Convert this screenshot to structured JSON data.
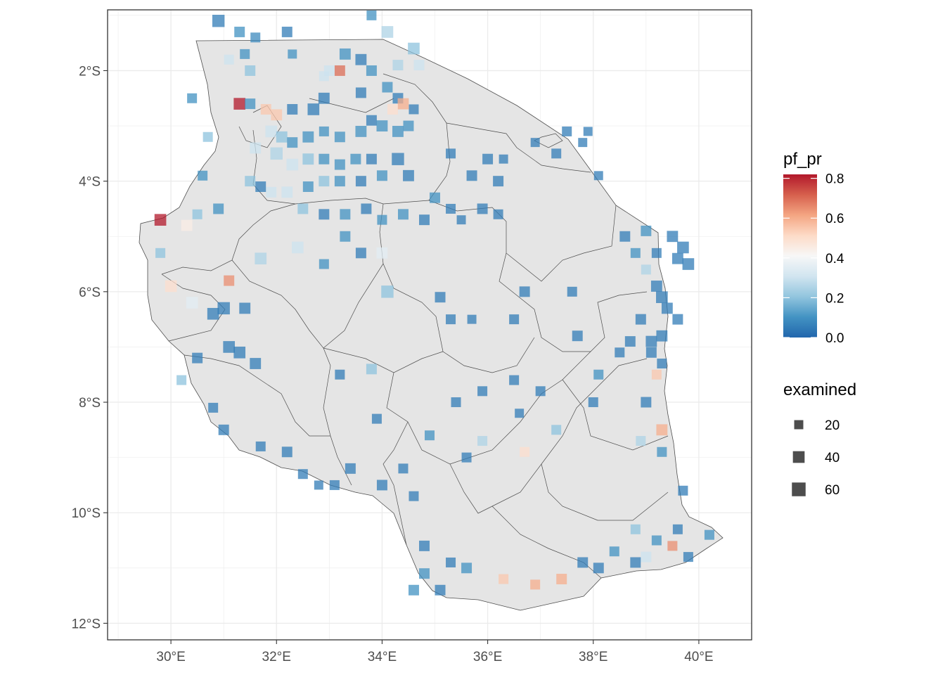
{
  "map": {
    "x_ticks": [
      "30°E",
      "32°E",
      "34°E",
      "36°E",
      "38°E",
      "40°E"
    ],
    "y_ticks": [
      "2°S",
      "4°S",
      "6°S",
      "8°S",
      "10°S",
      "12°S"
    ],
    "x_tick_values": [
      30,
      32,
      34,
      36,
      38,
      40
    ],
    "y_tick_values": [
      -2,
      -4,
      -6,
      -8,
      -10,
      -12
    ],
    "xlim": [
      28.8,
      41.0
    ],
    "ylim": [
      -12.3,
      -0.9
    ],
    "grid": true,
    "colors": {
      "panel_bg": "#ffffff",
      "grid": "#ebebeb",
      "land": "#e5e5e5",
      "border": "#4d4d4d",
      "frame": "#333333"
    }
  },
  "legend": {
    "color_title": "pf_pr",
    "color_ticks": [
      "0.8",
      "0.6",
      "0.4",
      "0.2",
      "0.0"
    ],
    "color_tick_values": [
      0.8,
      0.6,
      0.4,
      0.2,
      0.0
    ],
    "color_range": [
      0,
      0.82
    ],
    "colors": [
      "#2166ac",
      "#4393c3",
      "#92c5de",
      "#d1e5f0",
      "#f7f7f7",
      "#fddbc7",
      "#f4a582",
      "#d6604d",
      "#b2182b"
    ],
    "size_title": "examined",
    "size_labels": [
      "20",
      "40",
      "60"
    ],
    "size_values": [
      20,
      40,
      60
    ]
  },
  "chart_data": {
    "type": "scatter",
    "xlabel": "",
    "ylabel": "",
    "x_field": "longitude",
    "y_field": "latitude",
    "color_field": "pf_pr",
    "size_field": "examined",
    "points": [
      [
        30.9,
        -1.1,
        0.05,
        45
      ],
      [
        31.3,
        -1.3,
        0.1,
        30
      ],
      [
        31.6,
        -1.4,
        0.08,
        25
      ],
      [
        32.2,
        -1.3,
        0.05,
        30
      ],
      [
        33.8,
        -1.0,
        0.1,
        25
      ],
      [
        34.1,
        -1.3,
        0.25,
        40
      ],
      [
        34.6,
        -1.6,
        0.2,
        40
      ],
      [
        34.3,
        -1.9,
        0.25,
        30
      ],
      [
        34.7,
        -1.9,
        0.3,
        30
      ],
      [
        31.1,
        -1.8,
        0.3,
        25
      ],
      [
        31.4,
        -1.7,
        0.1,
        25
      ],
      [
        31.5,
        -2.0,
        0.2,
        30
      ],
      [
        32.3,
        -1.7,
        0.1,
        20
      ],
      [
        33.3,
        -1.7,
        0.1,
        35
      ],
      [
        33.6,
        -1.8,
        0.05,
        35
      ],
      [
        33.2,
        -2.0,
        0.7,
        30
      ],
      [
        33.0,
        -2.0,
        0.3,
        30
      ],
      [
        32.9,
        -2.1,
        0.3,
        25
      ],
      [
        33.8,
        -2.0,
        0.1,
        30
      ],
      [
        33.6,
        -2.4,
        0.05,
        30
      ],
      [
        34.1,
        -2.3,
        0.1,
        30
      ],
      [
        34.3,
        -2.5,
        0.05,
        30
      ],
      [
        34.4,
        -2.6,
        0.6,
        35
      ],
      [
        34.2,
        -2.7,
        0.5,
        30
      ],
      [
        31.3,
        -2.6,
        0.82,
        40
      ],
      [
        30.4,
        -2.5,
        0.1,
        25
      ],
      [
        32.9,
        -2.5,
        0.05,
        35
      ],
      [
        32.7,
        -2.7,
        0.05,
        40
      ],
      [
        32.3,
        -2.7,
        0.05,
        30
      ],
      [
        32.0,
        -2.8,
        0.55,
        35
      ],
      [
        31.8,
        -2.7,
        0.55,
        30
      ],
      [
        31.5,
        -2.6,
        0.1,
        30
      ],
      [
        31.9,
        -3.1,
        0.3,
        40
      ],
      [
        32.1,
        -3.2,
        0.2,
        35
      ],
      [
        32.3,
        -3.3,
        0.1,
        30
      ],
      [
        32.6,
        -3.2,
        0.1,
        35
      ],
      [
        32.9,
        -3.1,
        0.1,
        25
      ],
      [
        33.2,
        -3.2,
        0.1,
        30
      ],
      [
        33.6,
        -3.1,
        0.1,
        35
      ],
      [
        33.8,
        -2.9,
        0.05,
        30
      ],
      [
        34.0,
        -3.0,
        0.1,
        35
      ],
      [
        34.3,
        -3.1,
        0.1,
        35
      ],
      [
        34.5,
        -3.0,
        0.1,
        30
      ],
      [
        34.6,
        -2.7,
        0.05,
        25
      ],
      [
        31.6,
        -3.4,
        0.3,
        35
      ],
      [
        32.0,
        -3.5,
        0.25,
        45
      ],
      [
        32.3,
        -3.7,
        0.3,
        40
      ],
      [
        32.6,
        -3.6,
        0.2,
        35
      ],
      [
        32.9,
        -3.6,
        0.1,
        30
      ],
      [
        33.2,
        -3.7,
        0.1,
        30
      ],
      [
        33.5,
        -3.6,
        0.1,
        30
      ],
      [
        33.8,
        -3.6,
        0.05,
        30
      ],
      [
        34.3,
        -3.6,
        0.05,
        45
      ],
      [
        34.5,
        -3.9,
        0.05,
        35
      ],
      [
        34.0,
        -3.9,
        0.1,
        30
      ],
      [
        33.6,
        -4.0,
        0.05,
        30
      ],
      [
        33.2,
        -4.0,
        0.1,
        30
      ],
      [
        32.9,
        -4.0,
        0.2,
        30
      ],
      [
        32.6,
        -4.1,
        0.1,
        30
      ],
      [
        32.2,
        -4.2,
        0.3,
        35
      ],
      [
        31.9,
        -4.2,
        0.3,
        30
      ],
      [
        31.5,
        -4.0,
        0.2,
        30
      ],
      [
        30.6,
        -3.9,
        0.1,
        25
      ],
      [
        30.7,
        -3.2,
        0.2,
        25
      ],
      [
        30.5,
        -4.6,
        0.2,
        25
      ],
      [
        29.8,
        -4.7,
        0.82,
        40
      ],
      [
        30.3,
        -4.8,
        0.45,
        35
      ],
      [
        30.9,
        -4.5,
        0.1,
        30
      ],
      [
        31.7,
        -4.1,
        0.05,
        30
      ],
      [
        32.5,
        -4.5,
        0.2,
        30
      ],
      [
        32.9,
        -4.6,
        0.05,
        30
      ],
      [
        33.3,
        -4.6,
        0.1,
        30
      ],
      [
        33.7,
        -4.5,
        0.05,
        30
      ],
      [
        34.0,
        -4.7,
        0.1,
        25
      ],
      [
        34.4,
        -4.6,
        0.1,
        30
      ],
      [
        34.8,
        -4.7,
        0.05,
        30
      ],
      [
        35.0,
        -4.3,
        0.1,
        30
      ],
      [
        35.3,
        -4.5,
        0.05,
        25
      ],
      [
        35.5,
        -4.7,
        0.05,
        20
      ],
      [
        35.9,
        -4.5,
        0.05,
        30
      ],
      [
        36.2,
        -4.6,
        0.05,
        25
      ],
      [
        35.7,
        -3.9,
        0.05,
        30
      ],
      [
        36.2,
        -4.0,
        0.05,
        30
      ],
      [
        36.3,
        -3.6,
        0.05,
        20
      ],
      [
        36.0,
        -3.6,
        0.05,
        30
      ],
      [
        35.3,
        -3.5,
        0.05,
        25
      ],
      [
        36.9,
        -3.3,
        0.05,
        20
      ],
      [
        37.3,
        -3.5,
        0.05,
        25
      ],
      [
        37.5,
        -3.1,
        0.05,
        25
      ],
      [
        37.9,
        -3.1,
        0.05,
        20
      ],
      [
        37.8,
        -3.3,
        0.05,
        20
      ],
      [
        38.1,
        -3.9,
        0.05,
        20
      ],
      [
        38.6,
        -5.0,
        0.05,
        30
      ],
      [
        38.8,
        -5.3,
        0.1,
        25
      ],
      [
        39.0,
        -4.9,
        0.1,
        30
      ],
      [
        39.2,
        -5.3,
        0.05,
        25
      ],
      [
        39.5,
        -5.0,
        0.05,
        35
      ],
      [
        39.7,
        -5.2,
        0.05,
        40
      ],
      [
        39.8,
        -5.5,
        0.05,
        40
      ],
      [
        39.6,
        -5.4,
        0.05,
        35
      ],
      [
        39.0,
        -5.6,
        0.25,
        25
      ],
      [
        39.2,
        -5.9,
        0.05,
        35
      ],
      [
        39.3,
        -6.1,
        0.05,
        40
      ],
      [
        39.4,
        -6.3,
        0.05,
        35
      ],
      [
        39.6,
        -6.5,
        0.05,
        30
      ],
      [
        39.3,
        -6.8,
        0.05,
        35
      ],
      [
        39.1,
        -6.9,
        0.05,
        35
      ],
      [
        38.9,
        -6.5,
        0.05,
        30
      ],
      [
        38.7,
        -6.9,
        0.05,
        30
      ],
      [
        38.5,
        -7.1,
        0.05,
        25
      ],
      [
        39.1,
        -7.1,
        0.05,
        30
      ],
      [
        39.3,
        -7.3,
        0.05,
        25
      ],
      [
        39.2,
        -7.5,
        0.55,
        25
      ],
      [
        39.0,
        -8.0,
        0.05,
        30
      ],
      [
        39.3,
        -8.5,
        0.6,
        35
      ],
      [
        38.9,
        -8.7,
        0.25,
        25
      ],
      [
        39.3,
        -8.9,
        0.1,
        25
      ],
      [
        39.7,
        -9.6,
        0.05,
        25
      ],
      [
        39.6,
        -10.3,
        0.05,
        25
      ],
      [
        38.8,
        -10.3,
        0.2,
        25
      ],
      [
        39.2,
        -10.5,
        0.1,
        25
      ],
      [
        39.5,
        -10.6,
        0.65,
        25
      ],
      [
        39.8,
        -10.8,
        0.05,
        25
      ],
      [
        40.2,
        -10.4,
        0.1,
        25
      ],
      [
        39.0,
        -10.8,
        0.3,
        30
      ],
      [
        38.8,
        -10.9,
        0.05,
        30
      ],
      [
        38.4,
        -10.7,
        0.1,
        25
      ],
      [
        38.1,
        -11.0,
        0.05,
        30
      ],
      [
        37.8,
        -10.9,
        0.05,
        30
      ],
      [
        37.4,
        -11.2,
        0.6,
        30
      ],
      [
        36.9,
        -11.3,
        0.6,
        25
      ],
      [
        36.3,
        -11.2,
        0.55,
        25
      ],
      [
        35.6,
        -11.0,
        0.1,
        30
      ],
      [
        35.3,
        -10.9,
        0.05,
        25
      ],
      [
        34.8,
        -11.1,
        0.1,
        30
      ],
      [
        34.6,
        -11.4,
        0.1,
        30
      ],
      [
        35.1,
        -11.4,
        0.05,
        30
      ],
      [
        34.8,
        -10.6,
        0.05,
        30
      ],
      [
        34.6,
        -9.7,
        0.05,
        25
      ],
      [
        34.4,
        -9.2,
        0.05,
        25
      ],
      [
        34.0,
        -9.5,
        0.05,
        30
      ],
      [
        33.4,
        -9.2,
        0.05,
        30
      ],
      [
        33.1,
        -9.5,
        0.05,
        25
      ],
      [
        32.8,
        -9.5,
        0.05,
        20
      ],
      [
        32.5,
        -9.3,
        0.05,
        25
      ],
      [
        32.2,
        -8.9,
        0.05,
        30
      ],
      [
        31.7,
        -8.8,
        0.05,
        25
      ],
      [
        31.0,
        -8.5,
        0.05,
        30
      ],
      [
        30.8,
        -8.1,
        0.05,
        25
      ],
      [
        30.2,
        -7.6,
        0.2,
        25
      ],
      [
        30.5,
        -7.2,
        0.05,
        30
      ],
      [
        31.1,
        -7.0,
        0.05,
        40
      ],
      [
        31.3,
        -7.1,
        0.05,
        40
      ],
      [
        31.6,
        -7.3,
        0.05,
        35
      ],
      [
        31.0,
        -6.3,
        0.05,
        45
      ],
      [
        30.8,
        -6.4,
        0.05,
        40
      ],
      [
        31.4,
        -6.3,
        0.05,
        35
      ],
      [
        30.4,
        -6.2,
        0.35,
        40
      ],
      [
        30.0,
        -5.9,
        0.5,
        40
      ],
      [
        29.8,
        -5.3,
        0.2,
        25
      ],
      [
        31.1,
        -5.8,
        0.65,
        30
      ],
      [
        31.7,
        -5.4,
        0.25,
        40
      ],
      [
        32.4,
        -5.2,
        0.3,
        40
      ],
      [
        32.9,
        -5.5,
        0.1,
        25
      ],
      [
        33.3,
        -5.0,
        0.1,
        30
      ],
      [
        33.6,
        -5.3,
        0.05,
        30
      ],
      [
        34.0,
        -5.3,
        0.35,
        35
      ],
      [
        34.1,
        -6.0,
        0.2,
        45
      ],
      [
        35.1,
        -6.1,
        0.05,
        30
      ],
      [
        35.3,
        -6.5,
        0.05,
        25
      ],
      [
        35.7,
        -6.5,
        0.05,
        20
      ],
      [
        36.5,
        -6.5,
        0.05,
        25
      ],
      [
        36.7,
        -6.0,
        0.05,
        30
      ],
      [
        37.6,
        -6.0,
        0.05,
        25
      ],
      [
        37.7,
        -6.8,
        0.05,
        30
      ],
      [
        38.1,
        -7.5,
        0.1,
        25
      ],
      [
        37.0,
        -7.8,
        0.05,
        25
      ],
      [
        36.5,
        -7.6,
        0.05,
        25
      ],
      [
        35.9,
        -7.8,
        0.05,
        25
      ],
      [
        35.4,
        -8.0,
        0.05,
        25
      ],
      [
        34.9,
        -8.6,
        0.1,
        25
      ],
      [
        35.9,
        -8.7,
        0.25,
        25
      ],
      [
        36.7,
        -8.9,
        0.5,
        25
      ],
      [
        37.3,
        -8.5,
        0.2,
        25
      ],
      [
        38.0,
        -8.0,
        0.05,
        25
      ],
      [
        36.6,
        -8.2,
        0.05,
        20
      ],
      [
        35.6,
        -9.0,
        0.05,
        25
      ],
      [
        33.8,
        -7.4,
        0.2,
        30
      ],
      [
        33.2,
        -7.5,
        0.05,
        25
      ],
      [
        33.9,
        -8.3,
        0.05,
        25
      ]
    ]
  }
}
